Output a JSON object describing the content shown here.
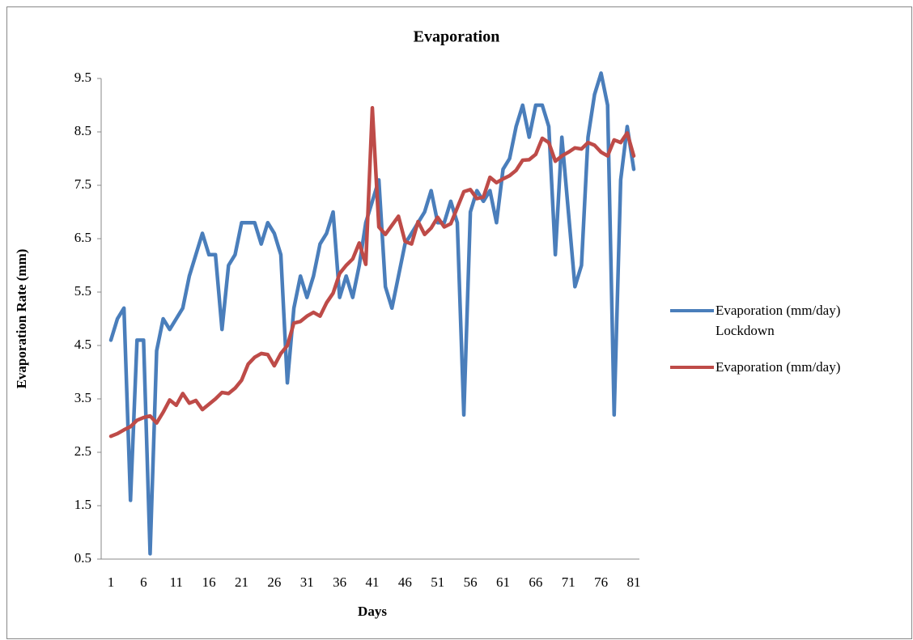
{
  "chart_data": {
    "type": "line",
    "title": "Evaporation",
    "x_label": "Days",
    "y_label": "Evaporation Rate (mm)",
    "categories": [
      "1",
      null,
      null,
      null,
      null,
      "6",
      null,
      null,
      null,
      null,
      "11",
      null,
      null,
      null,
      null,
      "16",
      null,
      null,
      null,
      null,
      "21",
      null,
      null,
      null,
      null,
      "26",
      null,
      null,
      null,
      null,
      "31",
      null,
      null,
      null,
      null,
      "36",
      null,
      null,
      null,
      null,
      "41",
      null,
      null,
      null,
      null,
      "46",
      null,
      null,
      null,
      null,
      "51",
      null,
      null,
      null,
      null,
      "56",
      null,
      null,
      null,
      null,
      "61",
      null,
      null,
      null,
      null,
      "66",
      null,
      null,
      null,
      null,
      "71",
      null,
      null,
      null,
      null,
      "76",
      null,
      null,
      null,
      null,
      "81"
    ],
    "series": [
      {
        "name": "Evaporation (mm/day) Lockdown",
        "color": "#4a7ebb",
        "values": [
          4.6,
          5.0,
          5.2,
          1.6,
          4.6,
          4.6,
          0.6,
          4.4,
          5.0,
          4.8,
          5.0,
          5.2,
          5.8,
          6.2,
          6.6,
          6.2,
          6.2,
          4.8,
          6.0,
          6.2,
          6.8,
          6.8,
          6.8,
          6.4,
          6.8,
          6.6,
          6.2,
          3.8,
          5.2,
          5.8,
          5.4,
          5.8,
          6.4,
          6.6,
          7.0,
          5.4,
          5.8,
          5.4,
          6.0,
          6.8,
          7.2,
          7.6,
          5.6,
          5.2,
          5.8,
          6.4,
          6.6,
          6.8,
          7.0,
          7.4,
          6.8,
          6.8,
          7.2,
          6.8,
          3.2,
          7.0,
          7.4,
          7.2,
          7.4,
          6.8,
          7.8,
          8.0,
          8.6,
          9.0,
          8.4,
          9.0,
          9.0,
          8.6,
          6.2,
          8.4,
          7.0,
          5.6,
          6.0,
          8.4,
          9.2,
          9.6,
          9.0,
          3.2,
          7.6,
          8.6,
          7.8
        ]
      },
      {
        "name": "Evaporation (mm/day)",
        "color": "#be4b48",
        "values": [
          2.8,
          2.85,
          2.92,
          2.98,
          3.1,
          3.15,
          3.18,
          3.05,
          3.25,
          3.48,
          3.38,
          3.6,
          3.42,
          3.47,
          3.3,
          3.4,
          3.5,
          3.62,
          3.6,
          3.7,
          3.85,
          4.15,
          4.28,
          4.35,
          4.33,
          4.12,
          4.35,
          4.5,
          4.92,
          4.95,
          5.05,
          5.12,
          5.05,
          5.3,
          5.48,
          5.85,
          6.0,
          6.12,
          6.42,
          6.02,
          8.95,
          6.72,
          6.58,
          6.75,
          6.92,
          6.45,
          6.4,
          6.82,
          6.58,
          6.7,
          6.9,
          6.72,
          6.78,
          7.08,
          7.38,
          7.42,
          7.25,
          7.28,
          7.65,
          7.55,
          7.62,
          7.68,
          7.78,
          7.97,
          7.98,
          8.08,
          8.38,
          8.3,
          7.95,
          8.05,
          8.12,
          8.2,
          8.18,
          8.3,
          8.25,
          8.12,
          8.05,
          8.35,
          8.3,
          8.48,
          8.05
        ]
      }
    ],
    "ylim": [
      0.5,
      9.5
    ],
    "yticks": [
      0.5,
      1.5,
      2.5,
      3.5,
      4.5,
      5.5,
      6.5,
      7.5,
      8.5,
      9.5
    ],
    "grid": false,
    "legend": "right"
  }
}
